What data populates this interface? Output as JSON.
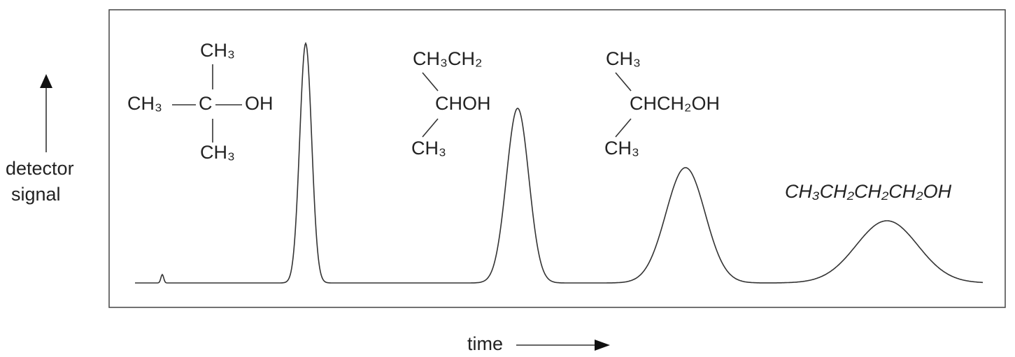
{
  "y_axis_label": {
    "lines": [
      "detector",
      "signal"
    ]
  },
  "x_axis_label": "time",
  "compounds": [
    {
      "name": "tert-butanol-structure",
      "top": "CH₃",
      "left": "CH₃",
      "center": "C",
      "right": "OH",
      "bottom": "CH₃"
    },
    {
      "name": "2-butanol-structure",
      "top": "CH₃CH₂",
      "center": "CHOH",
      "bottom": "CH₃"
    },
    {
      "name": "isobutanol-structure",
      "top": "CH₃",
      "center": "CHCH₂OH",
      "bottom": "CH₃"
    },
    {
      "name": "1-butanol-structure",
      "formula": "CH₃CH₂CH₂CH₂OH"
    }
  ]
}
